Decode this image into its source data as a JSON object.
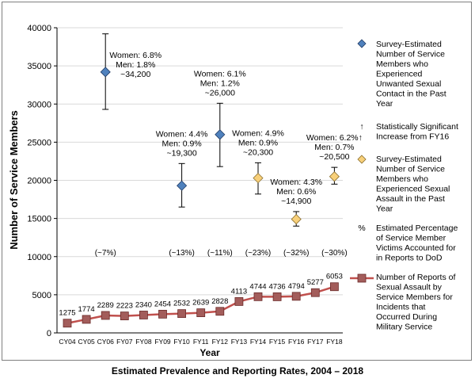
{
  "chart_data": {
    "type": "line",
    "title": "Estimated Prevalence and Reporting Rates, 2004 – 2018",
    "xlabel": "Year",
    "ylabel": "Number of Service Members",
    "ylim": [
      0,
      40000
    ],
    "yticks": [
      0,
      5000,
      10000,
      15000,
      20000,
      25000,
      30000,
      35000,
      40000
    ],
    "ytick_labels": [
      "0",
      "5000",
      "10000",
      "15000",
      "20000",
      "25000",
      "30000",
      "35000",
      "40000"
    ],
    "categories": [
      "CY04",
      "CY05",
      "CY06",
      "FY07",
      "FY08",
      "FY09",
      "FY10",
      "FY11",
      "FY12",
      "FY13",
      "FY14",
      "FY15",
      "FY16",
      "FY17",
      "FY18"
    ],
    "reports": {
      "name": "Number of Reports of Sexual Assault by Service Members for Incidents that Occurred During Military Service",
      "values": [
        1275,
        1774,
        2289,
        2223,
        2340,
        2454,
        2532,
        2639,
        2828,
        4113,
        4744,
        4736,
        4794,
        5277,
        6053
      ],
      "labels": [
        "1275",
        "1774",
        "2289",
        "2223",
        "2340",
        "2454",
        "2532",
        "2639",
        "2828",
        "4113",
        "4744",
        "4736",
        "4794",
        "5277",
        "6053"
      ],
      "color": "#c0504d",
      "marker_color": "#a35d5b"
    },
    "usc_series": {
      "name": "Survey-Estimated Number of Service Members who Experienced Unwanted Sexual Contact in the Past Year",
      "color": "#4f81bd",
      "points": [
        {
          "x": "CY06",
          "value": 34200,
          "err_low": 29300,
          "err_high": 39200,
          "lines": [
            "Women: 6.8%",
            "Men: 1.8%",
            "~34,200"
          ]
        },
        {
          "x": "FY10",
          "value": 19300,
          "err_low": 16500,
          "err_high": 22200,
          "lines": [
            "Women: 4.4%",
            "Men: 0.9%",
            "~19,300"
          ]
        },
        {
          "x": "FY12",
          "value": 26000,
          "err_low": 21800,
          "err_high": 30100,
          "lines": [
            "Women: 6.1%",
            "Men: 1.2%",
            "~26,000"
          ]
        }
      ]
    },
    "sa_series": {
      "name": "Survey-Estimated Number of Service Members who Experienced Sexual Assault in the Past Year",
      "color": "#f8d07a",
      "points": [
        {
          "x": "FY14",
          "value": 20300,
          "err_low": 18200,
          "err_high": 22300,
          "lines": [
            "Women: 4.9%",
            "Men: 0.9%",
            "~20,300"
          ]
        },
        {
          "x": "FY16",
          "value": 14900,
          "err_low": 14000,
          "err_high": 15900,
          "lines": [
            "Women: 4.3%",
            "Men: 0.6%",
            "~14,900"
          ]
        },
        {
          "x": "FY18",
          "value": 20500,
          "err_low": 19500,
          "err_high": 21700,
          "lines": [
            "Women: 6.2%↑",
            "Men: 0.7%",
            "~20,500"
          ]
        }
      ]
    },
    "percent_annotations": [
      {
        "x": "CY06",
        "text": "(~7%)"
      },
      {
        "x": "FY10",
        "text": "(~13%)"
      },
      {
        "x": "FY12",
        "text": "(~11%)"
      },
      {
        "x": "FY14",
        "text": "(~23%)"
      },
      {
        "x": "FY16",
        "text": "(~32%)"
      },
      {
        "x": "FY18",
        "text": "(~30%)"
      }
    ],
    "legend": {
      "position": "right",
      "usc_lines": [
        "Survey-Estimated",
        "Number of Service",
        "Members who",
        "Experienced",
        "Unwanted Sexual",
        "Contact in the Past",
        "Year"
      ],
      "sig_symbol": "↑",
      "sig_lines": [
        "Statistically Significant",
        "Increase from FY16"
      ],
      "sa_lines": [
        "Survey-Estimated",
        "Number of Service",
        "Members who",
        "Experienced Sexual",
        "Assault in the Past",
        "Year"
      ],
      "pct_symbol": "%",
      "pct_lines": [
        "Estimated Percentage",
        "of Service Member",
        "Victims Accounted for",
        "in Reports to DoD"
      ],
      "reports_lines": [
        "Number of Reports of",
        "Sexual Assault by",
        "Service Members for",
        "Incidents that",
        "Occurred During",
        "Military Service"
      ]
    }
  }
}
